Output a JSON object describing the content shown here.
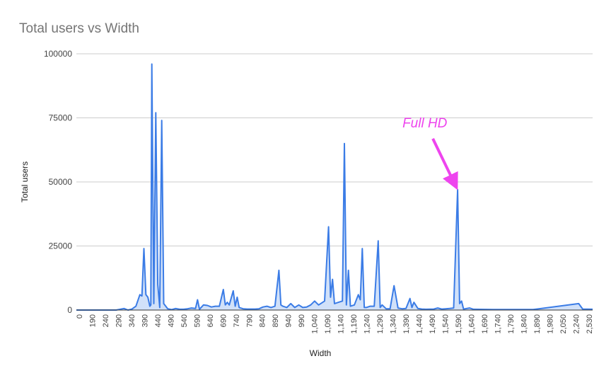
{
  "chart_data": {
    "type": "area",
    "title": "Total users vs Width",
    "xlabel": "Width",
    "ylabel": "Total users",
    "ylim": [
      0,
      100000
    ],
    "xlim": [
      0,
      2600
    ],
    "y_ticks": [
      "0",
      "25000",
      "50000",
      "75000",
      "100000"
    ],
    "y_tick_values": [
      0,
      25000,
      50000,
      75000,
      100000
    ],
    "x_ticks": [
      "0",
      "190",
      "240",
      "290",
      "340",
      "390",
      "440",
      "490",
      "540",
      "590",
      "640",
      "690",
      "740",
      "790",
      "840",
      "890",
      "940",
      "990",
      "1,040",
      "1,090",
      "1,140",
      "1,190",
      "1,240",
      "1,290",
      "1,340",
      "1,390",
      "1,440",
      "1,490",
      "1,540",
      "1,590",
      "1,640",
      "1,690",
      "1,740",
      "1,790",
      "1,840",
      "1,890",
      "1,980",
      "2,050",
      "2,240",
      "2,530"
    ],
    "grid": true,
    "legend": "none",
    "colors": {
      "line": "#3b7ce6",
      "fill": "#c6d9f7",
      "grid": "#cccccc",
      "annotation": "#ee44ee"
    },
    "annotation": {
      "text": "Full HD",
      "x": 1920,
      "y": 47000
    },
    "series": [
      {
        "points": [
          [
            0,
            0
          ],
          [
            200,
            0
          ],
          [
            240,
            600
          ],
          [
            260,
            0
          ],
          [
            280,
            400
          ],
          [
            300,
            1500
          ],
          [
            320,
            6000
          ],
          [
            330,
            5500
          ],
          [
            340,
            24000
          ],
          [
            350,
            6000
          ],
          [
            360,
            5000
          ],
          [
            370,
            1500
          ],
          [
            375,
            2000
          ],
          [
            380,
            96000
          ],
          [
            390,
            2500
          ],
          [
            400,
            77000
          ],
          [
            410,
            10000
          ],
          [
            420,
            1000
          ],
          [
            430,
            74000
          ],
          [
            440,
            2500
          ],
          [
            460,
            500
          ],
          [
            480,
            200
          ],
          [
            500,
            600
          ],
          [
            520,
            300
          ],
          [
            540,
            300
          ],
          [
            560,
            500
          ],
          [
            580,
            800
          ],
          [
            600,
            600
          ],
          [
            610,
            4000
          ],
          [
            620,
            300
          ],
          [
            640,
            2000
          ],
          [
            660,
            1800
          ],
          [
            680,
            1200
          ],
          [
            700,
            1500
          ],
          [
            720,
            1500
          ],
          [
            740,
            8000
          ],
          [
            750,
            2000
          ],
          [
            760,
            3000
          ],
          [
            770,
            2000
          ],
          [
            790,
            7500
          ],
          [
            800,
            1500
          ],
          [
            810,
            5000
          ],
          [
            820,
            1000
          ],
          [
            840,
            500
          ],
          [
            860,
            400
          ],
          [
            880,
            400
          ],
          [
            900,
            400
          ],
          [
            920,
            500
          ],
          [
            940,
            1200
          ],
          [
            960,
            1500
          ],
          [
            980,
            1000
          ],
          [
            1000,
            1500
          ],
          [
            1020,
            15500
          ],
          [
            1030,
            2000
          ],
          [
            1040,
            1500
          ],
          [
            1060,
            1000
          ],
          [
            1080,
            2500
          ],
          [
            1100,
            1000
          ],
          [
            1120,
            2000
          ],
          [
            1140,
            1000
          ],
          [
            1160,
            1200
          ],
          [
            1180,
            2000
          ],
          [
            1200,
            3500
          ],
          [
            1220,
            2000
          ],
          [
            1250,
            3500
          ],
          [
            1270,
            32500
          ],
          [
            1280,
            5000
          ],
          [
            1290,
            12000
          ],
          [
            1300,
            2500
          ],
          [
            1320,
            3000
          ],
          [
            1340,
            3500
          ],
          [
            1350,
            65000
          ],
          [
            1360,
            2000
          ],
          [
            1370,
            15500
          ],
          [
            1380,
            1500
          ],
          [
            1400,
            2000
          ],
          [
            1420,
            6000
          ],
          [
            1430,
            4000
          ],
          [
            1440,
            24000
          ],
          [
            1450,
            1000
          ],
          [
            1460,
            1000
          ],
          [
            1480,
            1500
          ],
          [
            1500,
            1500
          ],
          [
            1520,
            27000
          ],
          [
            1530,
            1000
          ],
          [
            1540,
            2000
          ],
          [
            1560,
            500
          ],
          [
            1580,
            500
          ],
          [
            1600,
            9500
          ],
          [
            1620,
            800
          ],
          [
            1640,
            500
          ],
          [
            1660,
            600
          ],
          [
            1680,
            4500
          ],
          [
            1690,
            1000
          ],
          [
            1700,
            3000
          ],
          [
            1720,
            600
          ],
          [
            1740,
            400
          ],
          [
            1760,
            300
          ],
          [
            1800,
            400
          ],
          [
            1820,
            800
          ],
          [
            1840,
            400
          ],
          [
            1860,
            500
          ],
          [
            1880,
            600
          ],
          [
            1900,
            800
          ],
          [
            1920,
            47000
          ],
          [
            1930,
            2500
          ],
          [
            1940,
            3500
          ],
          [
            1950,
            400
          ],
          [
            1980,
            800
          ],
          [
            2000,
            300
          ],
          [
            2100,
            200
          ],
          [
            2300,
            200
          ],
          [
            2530,
            2500
          ],
          [
            2550,
            400
          ],
          [
            2600,
            300
          ]
        ]
      }
    ]
  }
}
